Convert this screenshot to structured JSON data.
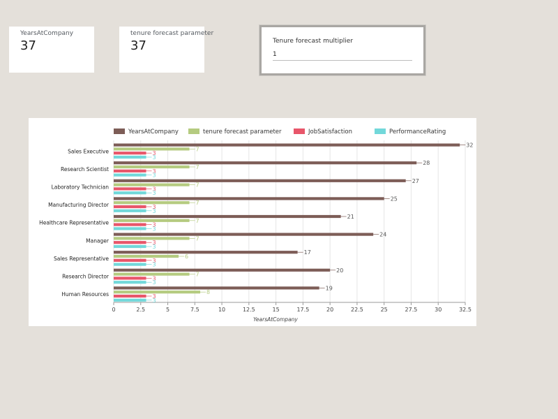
{
  "kpis": [
    {
      "label": "YearsAtCompany",
      "value": "37"
    },
    {
      "label": "tenure forecast parameter",
      "value": "37"
    }
  ],
  "parameter": {
    "label": "Tenure forecast multiplier",
    "value": "1"
  },
  "colors": {
    "YearsAtCompany": "#7d5d57",
    "tenure forecast parameter": "#b5cb80",
    "JobSatisfaction": "#e8566a",
    "PerformanceRating": "#72d8da"
  },
  "chart_data": {
    "type": "bar",
    "orientation": "horizontal",
    "legend_position": "top",
    "grid": true,
    "categories": [
      "Sales Executive",
      "Research Scientist",
      "Laboratory Technician",
      "Manufacturing Director",
      "Healthcare Representative",
      "Manager",
      "Sales Representative",
      "Research Director",
      "Human Resources"
    ],
    "series": [
      {
        "name": "YearsAtCompany",
        "values": [
          32,
          28,
          27,
          25,
          21,
          24,
          17,
          20,
          19
        ]
      },
      {
        "name": "tenure forecast parameter",
        "values": [
          7,
          7,
          7,
          7,
          7,
          7,
          6,
          7,
          8
        ]
      },
      {
        "name": "JobSatisfaction",
        "values": [
          3,
          3,
          3,
          3,
          3,
          3,
          3,
          3,
          3
        ]
      },
      {
        "name": "PerformanceRating",
        "values": [
          3,
          3,
          3,
          3,
          3,
          3,
          3,
          3,
          3
        ]
      }
    ],
    "xlabel": "YearsAtCompany",
    "xlim": [
      0,
      32.5
    ],
    "xticks": [
      "0",
      "2.5",
      "5",
      "7.5",
      "10",
      "12.5",
      "15",
      "17.5",
      "20",
      "22.5",
      "25",
      "27.5",
      "30",
      "32.5"
    ]
  }
}
